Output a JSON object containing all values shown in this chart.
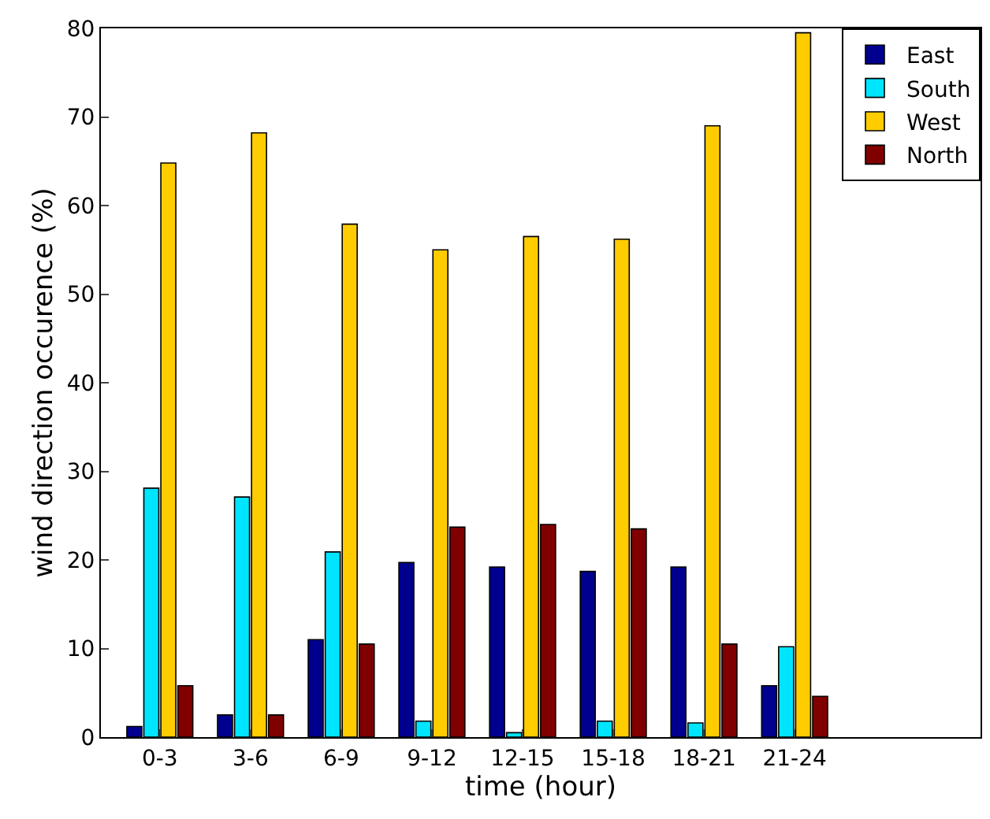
{
  "chart_data": {
    "type": "bar",
    "xlabel": "time (hour)",
    "ylabel": "wind direction occurence (%)",
    "categories": [
      "0-3",
      "3-6",
      "6-9",
      "9-12",
      "12-15",
      "15-18",
      "18-21",
      "21-24"
    ],
    "series": [
      {
        "name": "East",
        "color": "#00008f",
        "values": [
          1.2,
          2.5,
          11,
          19.7,
          19.2,
          18.7,
          19.2,
          5.8
        ]
      },
      {
        "name": "South",
        "color": "#00e5ff",
        "values": [
          28.1,
          27.1,
          20.9,
          1.8,
          0.5,
          1.8,
          1.6,
          10.2
        ]
      },
      {
        "name": "West",
        "color": "#ffcc00",
        "values": [
          64.8,
          68.2,
          57.9,
          55.0,
          56.5,
          56.2,
          69.0,
          79.5
        ]
      },
      {
        "name": "North",
        "color": "#800000",
        "values": [
          5.8,
          2.5,
          10.5,
          23.7,
          24.0,
          23.5,
          10.5,
          4.6
        ]
      }
    ],
    "ylim": [
      0,
      80
    ],
    "yticks": [
      0,
      10,
      20,
      30,
      40,
      50,
      60,
      70,
      80
    ],
    "legend": "top right"
  }
}
